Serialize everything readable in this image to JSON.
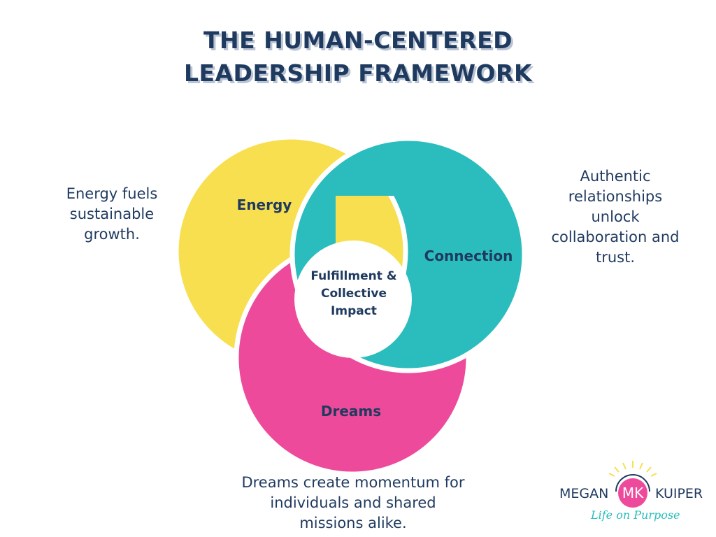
{
  "title": {
    "line1": "THE HUMAN-CENTERED",
    "line2": "LEADERSHIP FRAMEWORK"
  },
  "diagram": {
    "energy": {
      "label": "Energy",
      "color": "#f7df4f"
    },
    "connection": {
      "label": "Connection",
      "color": "#2bbdbd"
    },
    "dreams": {
      "label": "Dreams",
      "color": "#ee4a9b"
    },
    "center": {
      "line1": "Fulfillment &",
      "line2": "Collective",
      "line3": "Impact"
    }
  },
  "descriptions": {
    "energy": [
      "Energy fuels",
      "sustainable",
      "growth."
    ],
    "connection": [
      "Authentic",
      "relationships",
      "unlock",
      "collaboration and",
      "trust."
    ],
    "dreams": [
      "Dreams create momentum for",
      "individuals and shared",
      "missions alike."
    ]
  },
  "logo": {
    "first": "MEGAN",
    "initials": "MK",
    "last": "KUIPER",
    "tagline": "Life on Purpose"
  }
}
